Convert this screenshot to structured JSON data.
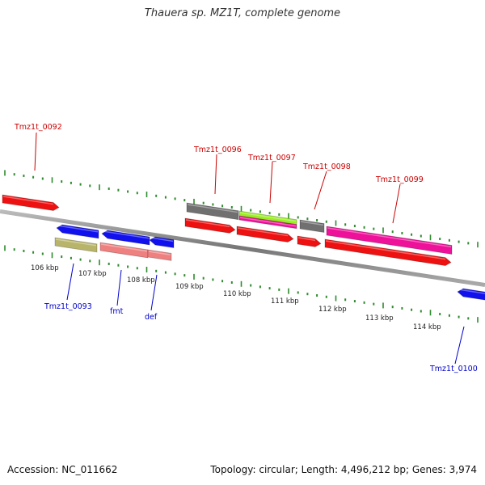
{
  "title": "Thauera sp. MZ1T, complete genome",
  "footer": {
    "accession": "Accession: NC_011662",
    "summary": "Topology: circular; Length: 4,496,212 bp; Genes: 3,974"
  },
  "colors": {
    "backbone": "#888888",
    "ticks": "#2e8b2e",
    "label_forward": "#cc0000",
    "label_reverse": "#0000cc"
  },
  "scale_labels": [
    "106 kbp",
    "107 kbp",
    "108 kbp",
    "109 kbp",
    "110 kbp",
    "111 kbp",
    "112 kbp",
    "113 kbp",
    "114 kbp"
  ],
  "features": [
    {
      "name": "Tmz1t_0092",
      "strand": "+",
      "color": "#ee1111"
    },
    {
      "name": "Tmz1t_0093",
      "strand": "-",
      "color": "#b8b46a"
    },
    {
      "name": "fmt",
      "strand": "-",
      "color": "#ee8080"
    },
    {
      "name": "def",
      "strand": "-",
      "color": "#ee8080"
    },
    {
      "name": "Tmz1t_0096",
      "strand": "+",
      "color": "#707070"
    },
    {
      "name": "Tmz1t_0097",
      "strand": "+",
      "color": "#99ee22"
    },
    {
      "name": "Tmz1t_0098",
      "strand": "+",
      "color": "#707070"
    },
    {
      "name": "Tmz1t_0099",
      "strand": "+",
      "color": "#ee1199"
    },
    {
      "name": "Tmz1t_0100",
      "strand": "-",
      "color": "#1111ee"
    }
  ]
}
